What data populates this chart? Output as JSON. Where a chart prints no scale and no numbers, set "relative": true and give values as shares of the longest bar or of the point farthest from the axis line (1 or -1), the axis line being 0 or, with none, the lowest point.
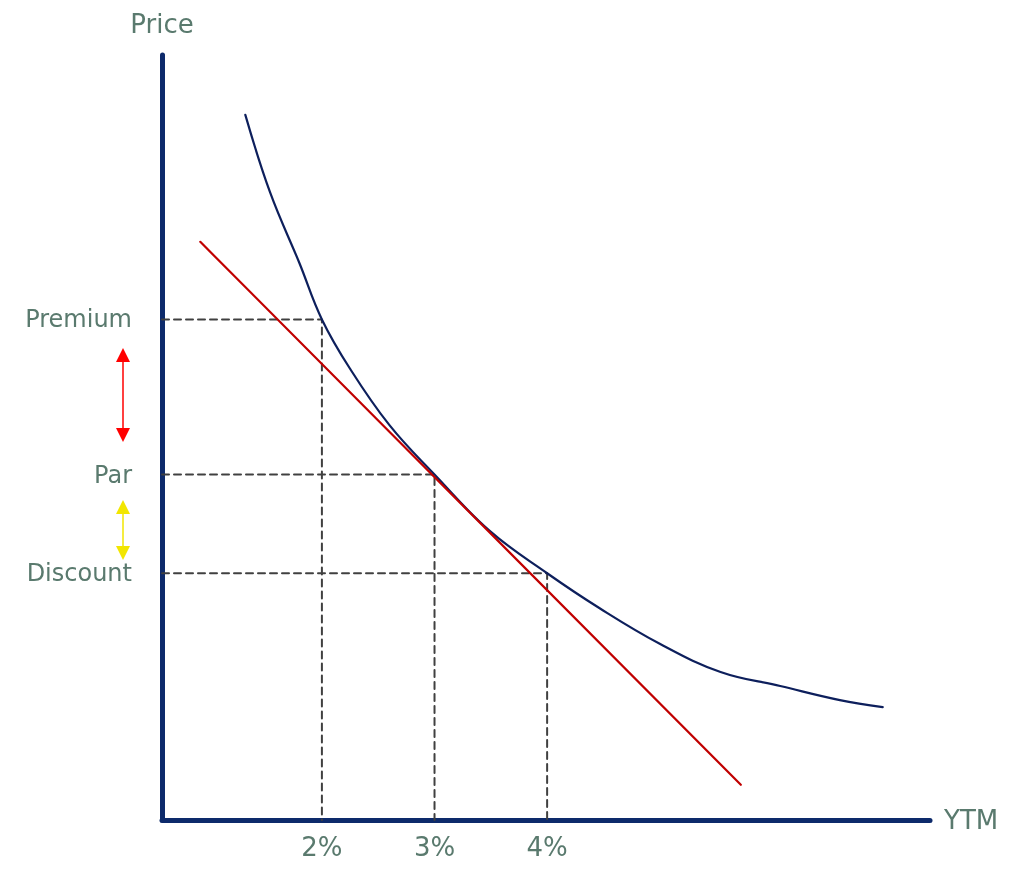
{
  "chart_data": {
    "type": "line",
    "xlabel": "YTM",
    "ylabel": "Price",
    "relative": true,
    "xlim": [
      0.58,
      7.4
    ],
    "xticks": [
      {
        "value": 2,
        "label": "2%"
      },
      {
        "value": 3,
        "label": "3%"
      },
      {
        "value": 4,
        "label": "4%"
      }
    ],
    "annotations": [
      "Premium",
      "Par",
      "Discount"
    ],
    "marker": "none",
    "grid": false,
    "series": [
      {
        "color": "#0d1f5c",
        "line_style": "solid",
        "x": [
          1.32,
          1.54,
          1.8,
          2,
          2.25,
          2.6,
          3,
          3.49,
          4,
          4.47,
          5,
          5.54,
          6.07,
          6.6,
          6.98
        ],
        "values": [
          1,
          0.89,
          0.79,
          0.71,
          0.64,
          0.56,
          0.49,
          0.41,
          0.35,
          0.3,
          0.25,
          0.21,
          0.19,
          0.17,
          0.16
        ]
      },
      {
        "color": "#c00000",
        "line_style": "solid",
        "x": [
          0.92,
          5.72
        ],
        "values": [
          0.82,
          0.05
        ]
      },
      {
        "color": "#404040",
        "line_style": "dashed",
        "x": [
          0.58,
          2,
          2
        ],
        "values": [
          0.71,
          0.71,
          0
        ]
      },
      {
        "color": "#404040",
        "line_style": "dashed",
        "x": [
          0.58,
          3,
          3
        ],
        "values": [
          0.49,
          0.49,
          0
        ]
      },
      {
        "color": "#404040",
        "line_style": "dashed",
        "x": [
          0.58,
          4,
          4
        ],
        "values": [
          0.35,
          0.35,
          0
        ]
      }
    ]
  }
}
